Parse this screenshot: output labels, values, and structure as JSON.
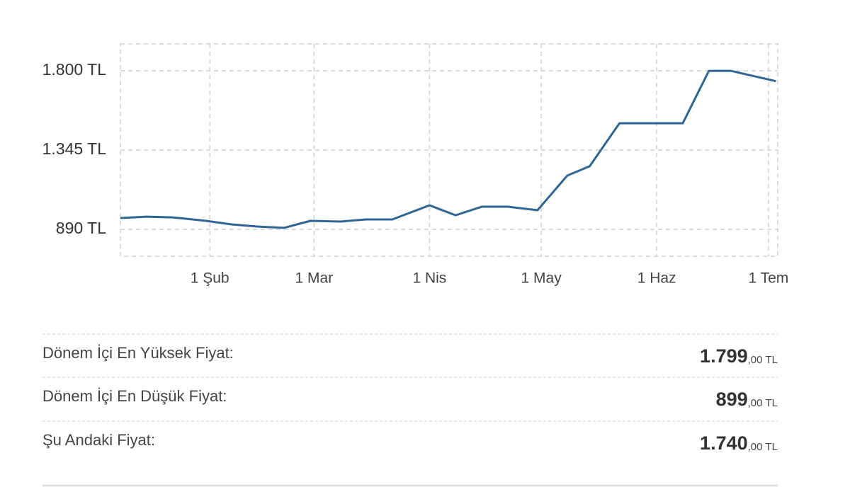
{
  "chart_data": {
    "type": "line",
    "x": [
      8,
      15,
      22,
      31,
      38,
      45,
      52,
      59,
      67,
      74,
      81,
      91,
      98,
      105,
      112,
      120,
      128,
      134,
      142,
      150,
      159,
      166,
      172,
      184
    ],
    "series": [
      {
        "color": "#2f6595",
        "values": [
          955,
          963,
          959,
          939,
          918,
          906,
          899,
          939,
          935,
          947,
          947,
          1028,
          971,
          1020,
          1020,
          1000,
          1199,
          1252,
          1499,
          1499,
          1499,
          1799,
          1799,
          1740
        ]
      }
    ],
    "xlim": [
      8,
      184.5
    ],
    "xticks": [
      {
        "value": 32,
        "label": "1 Şub"
      },
      {
        "value": 60,
        "label": "1 Mar"
      },
      {
        "value": 91,
        "label": "1 Nis"
      },
      {
        "value": 121,
        "label": "1 May"
      },
      {
        "value": 152,
        "label": "1 Haz"
      },
      {
        "value": 182,
        "label": "1 Tem"
      }
    ],
    "ylim": [
      736,
      1954
    ],
    "yticks": [
      {
        "value": 890,
        "label": "890 TL"
      },
      {
        "value": 1345,
        "label": "1.345 TL"
      },
      {
        "value": 1800,
        "label": "1.800 TL"
      }
    ],
    "grid": true
  },
  "stats": [
    {
      "label": "Dönem İçi En Yüksek Fiyat:",
      "value": "1.799",
      "decimals": ",00",
      "unit": "TL"
    },
    {
      "label": "Dönem İçi En Düşük Fiyat:",
      "value": "899",
      "decimals": ",00",
      "unit": "TL"
    },
    {
      "label": "Şu Andaki Fiyat:",
      "value": "1.740",
      "decimals": ",00",
      "unit": "TL"
    }
  ]
}
